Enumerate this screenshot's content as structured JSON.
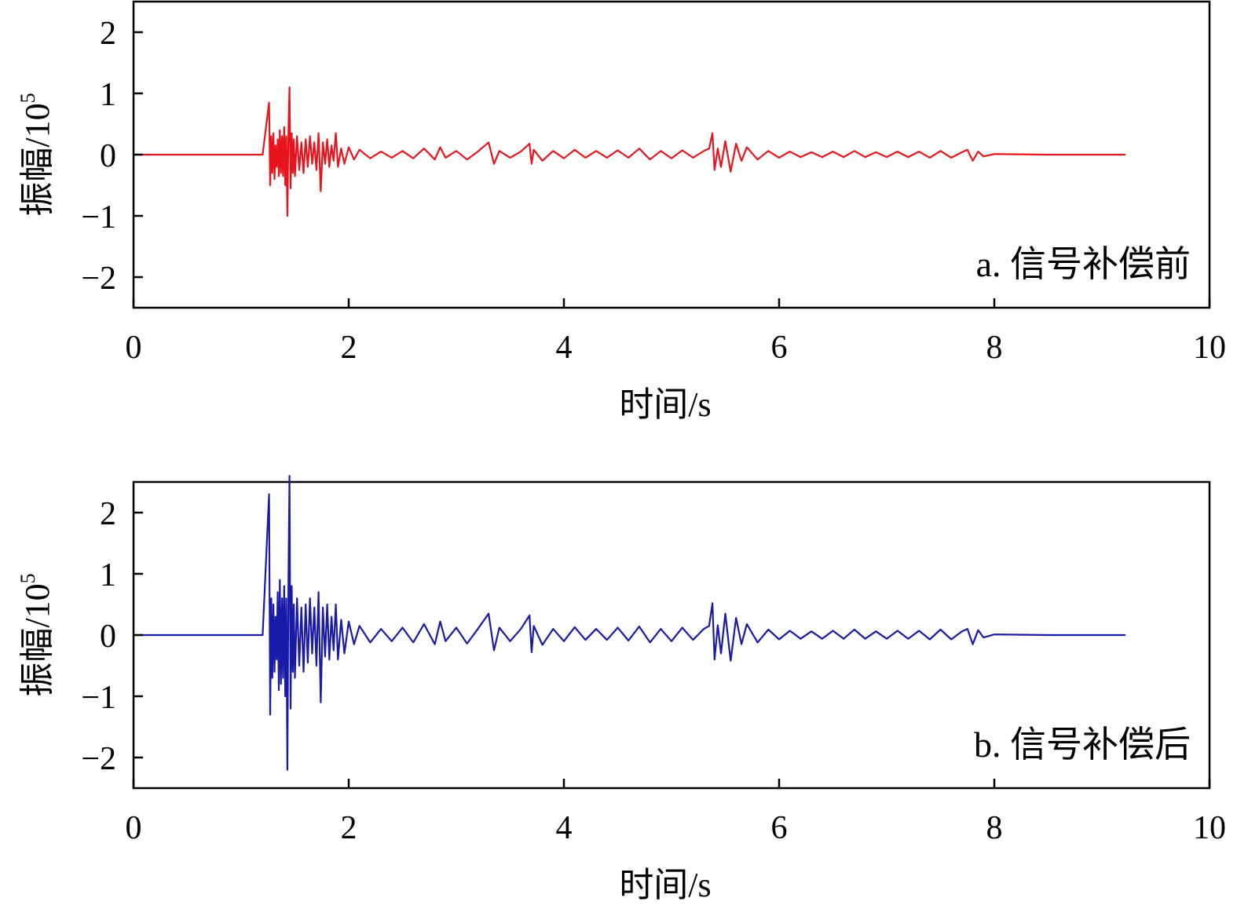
{
  "chart_data": [
    {
      "type": "line",
      "panel_label": "a. 信号补偿前",
      "xlabel": "时间/s",
      "ylabel_main": "振幅/10",
      "ylabel_exp": "5",
      "xlim": [
        0,
        10
      ],
      "ylim": [
        -2.5,
        2.5
      ],
      "xticks": [
        0,
        2,
        4,
        6,
        8,
        10
      ],
      "xtick_labels": [
        "0",
        "2",
        "4",
        "6",
        "8",
        "10"
      ],
      "yticks": [
        2,
        1,
        0,
        -1,
        -2
      ],
      "ytick_labels": [
        "2",
        "1",
        "0",
        "−1",
        "−2"
      ],
      "line_color": "#e8141c",
      "series": [
        {
          "x": [
            0,
            1.2,
            1.26,
            1.27,
            1.28,
            1.29,
            1.3,
            1.31,
            1.32,
            1.33,
            1.34,
            1.35,
            1.36,
            1.37,
            1.38,
            1.39,
            1.4,
            1.41,
            1.42,
            1.43,
            1.44,
            1.45,
            1.46,
            1.47,
            1.48,
            1.49,
            1.5,
            1.52,
            1.54,
            1.56,
            1.58,
            1.6,
            1.62,
            1.64,
            1.66,
            1.68,
            1.7,
            1.72,
            1.74,
            1.76,
            1.78,
            1.8,
            1.82,
            1.84,
            1.86,
            1.88,
            1.9,
            1.93,
            1.96,
            2.0,
            2.05,
            2.1,
            2.2,
            2.3,
            2.4,
            2.5,
            2.6,
            2.7,
            2.8,
            2.85,
            2.9,
            3.0,
            3.1,
            3.2,
            3.3,
            3.35,
            3.4,
            3.5,
            3.6,
            3.68,
            3.7,
            3.72,
            3.8,
            3.9,
            4.0,
            4.1,
            4.2,
            4.3,
            4.4,
            4.5,
            4.6,
            4.7,
            4.8,
            4.9,
            5.0,
            5.1,
            5.2,
            5.3,
            5.35,
            5.38,
            5.4,
            5.43,
            5.46,
            5.5,
            5.55,
            5.6,
            5.65,
            5.7,
            5.8,
            5.9,
            6.0,
            6.1,
            6.2,
            6.3,
            6.4,
            6.5,
            6.6,
            6.7,
            6.8,
            6.9,
            7.0,
            7.1,
            7.2,
            7.3,
            7.4,
            7.5,
            7.6,
            7.7,
            7.75,
            7.8,
            7.85,
            7.9,
            8.0,
            8.5,
            9.0,
            9.22
          ],
          "y": [
            0,
            0,
            0.85,
            -0.5,
            0.3,
            -0.3,
            0.35,
            -0.4,
            0.15,
            -0.2,
            0.25,
            -0.35,
            0.4,
            -0.3,
            0.3,
            -0.35,
            0.45,
            -0.5,
            0.3,
            -1.0,
            0.4,
            1.1,
            -0.55,
            0.35,
            -0.3,
            0.25,
            -0.35,
            0.3,
            -0.25,
            0.2,
            -0.3,
            0.25,
            -0.2,
            0.3,
            -0.15,
            0.2,
            -0.25,
            0.35,
            -0.6,
            0.2,
            -0.15,
            0.25,
            -0.2,
            0.15,
            -0.1,
            0.35,
            -0.2,
            0.1,
            -0.15,
            0.12,
            -0.08,
            0.08,
            -0.06,
            0.05,
            -0.05,
            0.06,
            -0.06,
            0.1,
            -0.08,
            0.12,
            -0.05,
            0.06,
            -0.08,
            0.05,
            0.2,
            -0.15,
            0.06,
            -0.05,
            0.05,
            0.18,
            -0.15,
            0.08,
            -0.1,
            0.06,
            -0.06,
            0.08,
            -0.05,
            0.06,
            -0.05,
            0.07,
            -0.05,
            0.1,
            -0.08,
            0.06,
            -0.06,
            0.07,
            -0.05,
            0.06,
            0.1,
            0.35,
            -0.25,
            0.1,
            -0.2,
            0.22,
            -0.28,
            0.18,
            -0.1,
            0.12,
            -0.08,
            0.06,
            -0.05,
            0.05,
            -0.04,
            0.04,
            -0.04,
            0.05,
            -0.04,
            0.06,
            -0.04,
            0.04,
            -0.04,
            0.05,
            -0.04,
            0.05,
            -0.05,
            0.06,
            -0.05,
            0.04,
            0.08,
            -0.1,
            0.05,
            -0.03,
            0.01,
            0,
            0,
            0
          ]
        }
      ]
    },
    {
      "type": "line",
      "panel_label": "b. 信号补偿后",
      "xlabel": "时间/s",
      "ylabel_main": "振幅/10",
      "ylabel_exp": "5",
      "xlim": [
        0,
        10
      ],
      "ylim": [
        -2.5,
        2.5
      ],
      "xticks": [
        0,
        2,
        4,
        6,
        8,
        10
      ],
      "xtick_labels": [
        "0",
        "2",
        "4",
        "6",
        "8",
        "10"
      ],
      "yticks": [
        2,
        1,
        0,
        -1,
        -2
      ],
      "ytick_labels": [
        "2",
        "1",
        "0",
        "−1",
        "−2"
      ],
      "line_color": "#1a1aa8",
      "series": [
        {
          "x": [
            0,
            1.2,
            1.26,
            1.27,
            1.28,
            1.29,
            1.3,
            1.31,
            1.32,
            1.33,
            1.34,
            1.35,
            1.36,
            1.37,
            1.38,
            1.39,
            1.4,
            1.41,
            1.42,
            1.43,
            1.44,
            1.45,
            1.46,
            1.47,
            1.48,
            1.49,
            1.5,
            1.52,
            1.54,
            1.56,
            1.58,
            1.6,
            1.62,
            1.64,
            1.66,
            1.68,
            1.7,
            1.72,
            1.74,
            1.76,
            1.78,
            1.8,
            1.82,
            1.84,
            1.86,
            1.88,
            1.9,
            1.93,
            1.96,
            2.0,
            2.05,
            2.1,
            2.2,
            2.3,
            2.4,
            2.5,
            2.6,
            2.7,
            2.8,
            2.85,
            2.9,
            3.0,
            3.1,
            3.2,
            3.3,
            3.35,
            3.4,
            3.5,
            3.6,
            3.68,
            3.7,
            3.72,
            3.8,
            3.9,
            4.0,
            4.1,
            4.2,
            4.3,
            4.4,
            4.5,
            4.6,
            4.7,
            4.8,
            4.9,
            5.0,
            5.1,
            5.2,
            5.3,
            5.35,
            5.38,
            5.4,
            5.43,
            5.46,
            5.5,
            5.55,
            5.6,
            5.65,
            5.7,
            5.8,
            5.9,
            6.0,
            6.1,
            6.2,
            6.3,
            6.4,
            6.5,
            6.6,
            6.7,
            6.8,
            6.9,
            7.0,
            7.1,
            7.2,
            7.3,
            7.4,
            7.5,
            7.6,
            7.7,
            7.75,
            7.8,
            7.85,
            7.9,
            8.0,
            8.5,
            9.0,
            9.22
          ],
          "y": [
            0,
            0,
            2.3,
            -1.3,
            0.6,
            -0.7,
            0.5,
            -0.6,
            0.3,
            -0.4,
            0.7,
            -0.9,
            0.9,
            -0.8,
            0.6,
            -0.7,
            0.8,
            -1.0,
            0.6,
            -2.2,
            0.9,
            2.6,
            -1.2,
            0.8,
            -0.6,
            0.5,
            -0.7,
            0.6,
            -0.5,
            0.45,
            -0.6,
            0.5,
            -0.45,
            0.6,
            -0.3,
            0.45,
            -0.5,
            0.7,
            -1.1,
            0.45,
            -0.35,
            0.5,
            -0.4,
            0.3,
            -0.25,
            0.5,
            -0.4,
            0.25,
            -0.3,
            0.22,
            -0.15,
            0.15,
            -0.12,
            0.1,
            -0.1,
            0.12,
            -0.12,
            0.18,
            -0.15,
            0.22,
            -0.1,
            0.12,
            -0.14,
            0.1,
            0.35,
            -0.25,
            0.12,
            -0.1,
            0.1,
            0.32,
            -0.28,
            0.15,
            -0.16,
            0.1,
            -0.1,
            0.13,
            -0.08,
            0.1,
            -0.08,
            0.12,
            -0.09,
            0.14,
            -0.12,
            0.1,
            -0.1,
            0.12,
            -0.08,
            0.1,
            0.15,
            0.52,
            -0.4,
            0.16,
            -0.3,
            0.35,
            -0.42,
            0.28,
            -0.15,
            0.18,
            -0.12,
            0.09,
            -0.07,
            0.07,
            -0.06,
            0.06,
            -0.06,
            0.07,
            -0.06,
            0.09,
            -0.06,
            0.06,
            -0.06,
            0.07,
            -0.06,
            0.07,
            -0.07,
            0.09,
            -0.07,
            0.06,
            0.1,
            -0.15,
            0.08,
            -0.04,
            0.01,
            0,
            0,
            0
          ]
        }
      ]
    }
  ]
}
